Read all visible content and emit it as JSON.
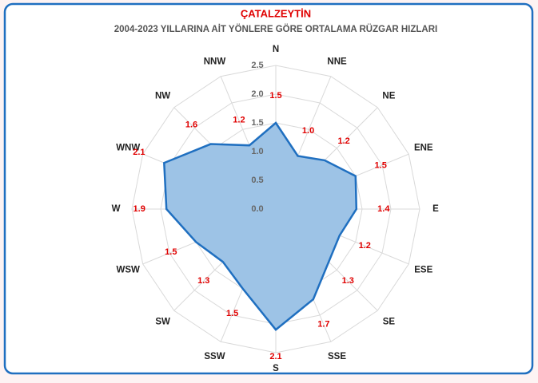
{
  "chart_data": {
    "type": "radar",
    "title": "ÇATALZEYTİN",
    "subtitle": "2004-2023 YILLARINA AİT YÖNLERE GÖRE ORTALAMA RÜZGAR HIZLARI",
    "categories": [
      "N",
      "NNE",
      "NE",
      "ENE",
      "E",
      "ESE",
      "SE",
      "SSE",
      "S",
      "SSW",
      "SW",
      "WSW",
      "W",
      "WNW",
      "NW",
      "NNW"
    ],
    "values": [
      1.5,
      1.0,
      1.2,
      1.5,
      1.4,
      1.2,
      1.3,
      1.7,
      2.1,
      1.5,
      1.3,
      1.5,
      1.9,
      2.1,
      1.6,
      1.2
    ],
    "value_labels": [
      "1.5",
      "1.0",
      "1.2",
      "1.5",
      "1.4",
      "1.2",
      "1.3",
      "1.7",
      "2.1",
      "1.5",
      "1.3",
      "1.5",
      "1.9",
      "2.1",
      "1.6",
      "1.2"
    ],
    "color": "#9dc3e6",
    "line_color": "#1f6fc0",
    "label_color": "#e00000",
    "title_color": "#e00000",
    "ylim": [
      0,
      2.5
    ],
    "yticks": [
      {
        "value": 0,
        "label": "0.0"
      },
      0.5,
      {
        "value": 1,
        "label": "1.0"
      },
      1.5,
      {
        "value": 2,
        "label": "2.0"
      },
      2.5
    ],
    "grid": true
  }
}
